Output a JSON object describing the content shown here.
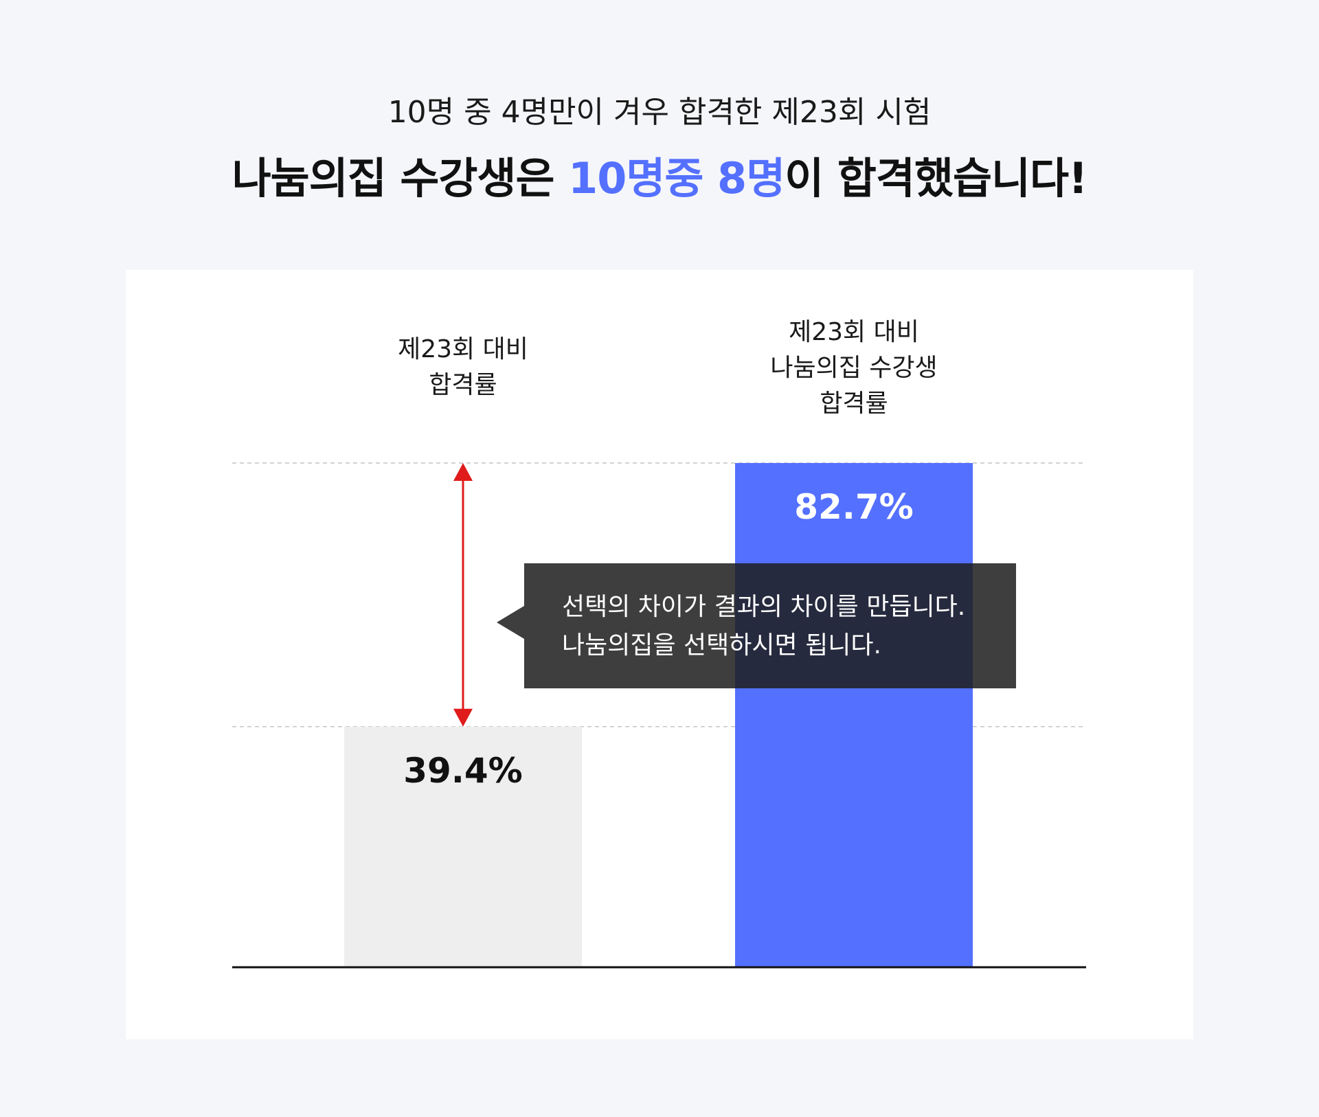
{
  "header": {
    "subtitle": "10명 중 4명만이 겨우 합격한 제23회 시험",
    "headline_before": "나눔의집 수강생은 ",
    "headline_accent": "10명중 8명",
    "headline_after": "이 합격했습니다!"
  },
  "colors": {
    "accent": "#5470ff",
    "bar_baseline": "#eeeeee",
    "bar_highlight": "#5470ff",
    "arrow": "#e01b1b",
    "callout_bg": "#1e1e1e"
  },
  "chart_data": {
    "type": "bar",
    "categories": [
      [
        "제23회 대비",
        "합격률"
      ],
      [
        "제23회 대비",
        "나눔의집 수강생",
        "합격률"
      ]
    ],
    "values": [
      39.4,
      82.7
    ],
    "value_labels": [
      "39.4%",
      "82.7%"
    ],
    "unit": "%",
    "ylim": [
      0,
      82.7
    ],
    "grid": false,
    "reference_lines": [
      39.4,
      82.7
    ],
    "annotation": {
      "type": "double-arrow",
      "from": 39.4,
      "to": 82.7,
      "lines": [
        "선택의 차이가 결과의 차이를 만듭니다.",
        "나눔의집을 선택하시면 됩니다."
      ]
    }
  }
}
